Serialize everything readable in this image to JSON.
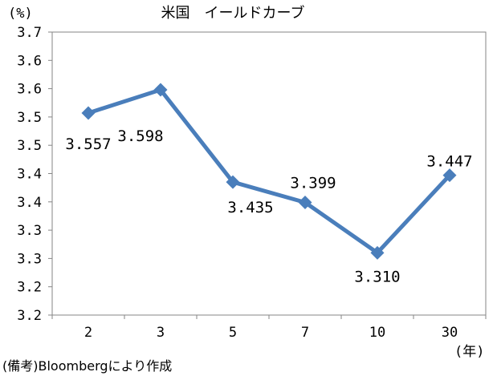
{
  "chart_data": {
    "type": "line",
    "title": "米国　イールドカーブ",
    "ylabel": "(%)",
    "xlabel": "(年)",
    "categories": [
      "2",
      "3",
      "5",
      "7",
      "10",
      "30"
    ],
    "series": [
      {
        "values": [
          3.557,
          3.598,
          3.435,
          3.399,
          3.31,
          3.447
        ],
        "labels": [
          "3.557",
          "3.598",
          "3.435",
          "3.399",
          "3.310",
          "3.447"
        ],
        "color": "#4a7ebb"
      }
    ],
    "ylim": [
      3.2,
      3.7
    ],
    "ytick_labels": [
      "3.7",
      "3.6",
      "3.6",
      "3.5",
      "3.5",
      "3.4",
      "3.4",
      "3.3",
      "3.3",
      "3.2",
      "3.2"
    ],
    "grid": false,
    "legend": "none",
    "source_note": "(備考)Bloombergにより作成"
  }
}
